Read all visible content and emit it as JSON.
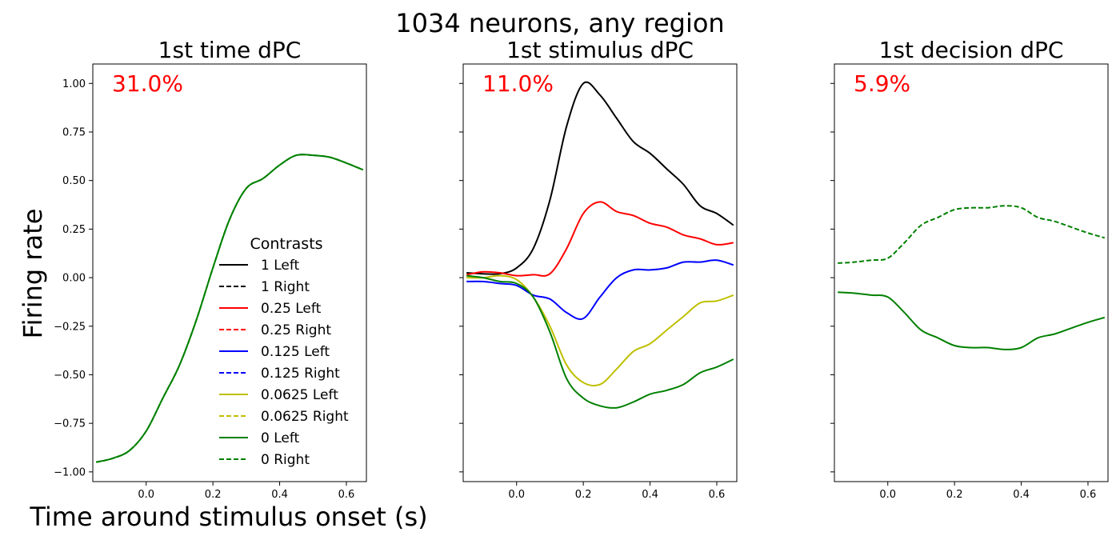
{
  "figure": {
    "suptitle": "1034 neurons, any region",
    "ylabel": "Firing rate",
    "xlabel": "Time around stimulus onset (s)",
    "annotation_color": "#ff0000"
  },
  "legend": {
    "title": "Contrasts",
    "entries": [
      {
        "label": "1 Left",
        "color": "#000000",
        "dashed": false
      },
      {
        "label": "1 Right",
        "color": "#000000",
        "dashed": true
      },
      {
        "label": "0.25 Left",
        "color": "#ff0000",
        "dashed": false
      },
      {
        "label": "0.25 Right",
        "color": "#ff0000",
        "dashed": true
      },
      {
        "label": "0.125 Left",
        "color": "#0000ff",
        "dashed": false
      },
      {
        "label": "0.125 Right",
        "color": "#0000ff",
        "dashed": true
      },
      {
        "label": "0.0625 Left",
        "color": "#bfbf00",
        "dashed": false
      },
      {
        "label": "0.0625 Right",
        "color": "#bfbf00",
        "dashed": true
      },
      {
        "label": "0 Left",
        "color": "#008000",
        "dashed": false
      },
      {
        "label": "0 Right",
        "color": "#008000",
        "dashed": true
      }
    ]
  },
  "chart_data": [
    {
      "type": "line",
      "title": "1st time dPC",
      "annotation": "31.0%",
      "xlim": [
        -0.16,
        0.66
      ],
      "ylim": [
        -1.05,
        1.1
      ],
      "xticks": [
        0.0,
        0.2,
        0.4,
        0.6
      ],
      "xtick_labels": [
        "0.0",
        "0.2",
        "0.4",
        "0.6"
      ],
      "yticks": [
        1.0,
        0.75,
        0.5,
        0.25,
        0.0,
        -0.25,
        -0.5,
        -0.75,
        -1.0
      ],
      "ytick_labels": [
        "1.00",
        "0.75",
        "0.50",
        "0.25",
        "0.00",
        "−0.25",
        "−0.50",
        "−0.75",
        "−1.00"
      ],
      "legend_position": "lower-right",
      "series": [
        {
          "name": "0 Left",
          "color": "#008000",
          "dashed": false,
          "x": [
            -0.15,
            -0.1,
            -0.05,
            0.0,
            0.05,
            0.1,
            0.15,
            0.2,
            0.25,
            0.3,
            0.35,
            0.4,
            0.45,
            0.5,
            0.55,
            0.6,
            0.65
          ],
          "y": [
            -0.95,
            -0.93,
            -0.89,
            -0.79,
            -0.62,
            -0.45,
            -0.22,
            0.05,
            0.3,
            0.46,
            0.51,
            0.58,
            0.63,
            0.63,
            0.62,
            0.59,
            0.555
          ]
        },
        {
          "name": "0 Right",
          "color": "#008000",
          "dashed": true,
          "x": [
            -0.15,
            -0.1,
            -0.05,
            0.0,
            0.05,
            0.1,
            0.15,
            0.2,
            0.25,
            0.3,
            0.35,
            0.4,
            0.45,
            0.5,
            0.55,
            0.6,
            0.65
          ],
          "y": [
            -0.95,
            -0.93,
            -0.89,
            -0.79,
            -0.62,
            -0.45,
            -0.22,
            0.05,
            0.3,
            0.46,
            0.51,
            0.58,
            0.63,
            0.63,
            0.62,
            0.59,
            0.555
          ]
        }
      ]
    },
    {
      "type": "line",
      "title": "1st stimulus dPC",
      "annotation": "11.0%",
      "xlim": [
        -0.16,
        0.66
      ],
      "ylim": [
        -1.05,
        1.1
      ],
      "xticks": [
        0.0,
        0.2,
        0.4,
        0.6
      ],
      "xtick_labels": [
        "0.0",
        "0.2",
        "0.4",
        "0.6"
      ],
      "yticks": [
        1.0,
        0.75,
        0.5,
        0.25,
        0.0,
        -0.25,
        -0.5,
        -0.75,
        -1.0
      ],
      "series": [
        {
          "name": "1 Left",
          "color": "#000000",
          "dashed": false,
          "x": [
            -0.15,
            -0.1,
            -0.05,
            0.0,
            0.05,
            0.1,
            0.15,
            0.2,
            0.25,
            0.3,
            0.35,
            0.4,
            0.45,
            0.5,
            0.55,
            0.6,
            0.65
          ],
          "y": [
            0.025,
            0.02,
            0.02,
            0.05,
            0.15,
            0.4,
            0.78,
            1.0,
            0.94,
            0.82,
            0.7,
            0.64,
            0.56,
            0.48,
            0.37,
            0.33,
            0.27
          ]
        },
        {
          "name": "0.25 Left",
          "color": "#ff0000",
          "dashed": false,
          "x": [
            -0.15,
            -0.1,
            -0.05,
            0.0,
            0.05,
            0.1,
            0.15,
            0.2,
            0.25,
            0.3,
            0.35,
            0.4,
            0.45,
            0.5,
            0.55,
            0.6,
            0.65
          ],
          "y": [
            0.015,
            0.03,
            0.025,
            0.01,
            0.015,
            0.02,
            0.15,
            0.33,
            0.39,
            0.34,
            0.32,
            0.28,
            0.26,
            0.22,
            0.2,
            0.17,
            0.18
          ]
        },
        {
          "name": "0.125 Left",
          "color": "#0000ff",
          "dashed": false,
          "x": [
            -0.15,
            -0.1,
            -0.05,
            0.0,
            0.05,
            0.1,
            0.15,
            0.2,
            0.25,
            0.3,
            0.35,
            0.4,
            0.45,
            0.5,
            0.55,
            0.6,
            0.65
          ],
          "y": [
            -0.02,
            -0.02,
            -0.03,
            -0.04,
            -0.09,
            -0.11,
            -0.18,
            -0.21,
            -0.1,
            0.0,
            0.04,
            0.04,
            0.05,
            0.08,
            0.08,
            0.09,
            0.065
          ]
        },
        {
          "name": "0.0625 Left",
          "color": "#bfbf00",
          "dashed": false,
          "x": [
            -0.15,
            -0.1,
            -0.05,
            0.0,
            0.05,
            0.1,
            0.15,
            0.2,
            0.25,
            0.3,
            0.35,
            0.4,
            0.45,
            0.5,
            0.55,
            0.6,
            0.65
          ],
          "y": [
            0.0,
            0.0,
            0.01,
            -0.01,
            -0.1,
            -0.25,
            -0.45,
            -0.54,
            -0.55,
            -0.47,
            -0.38,
            -0.34,
            -0.27,
            -0.2,
            -0.13,
            -0.12,
            -0.09
          ]
        },
        {
          "name": "0 Left",
          "color": "#008000",
          "dashed": false,
          "x": [
            -0.15,
            -0.1,
            -0.05,
            0.0,
            0.05,
            0.1,
            0.15,
            0.2,
            0.25,
            0.3,
            0.35,
            0.4,
            0.45,
            0.5,
            0.55,
            0.6,
            0.65
          ],
          "y": [
            0.01,
            0.0,
            -0.02,
            -0.03,
            -0.1,
            -0.28,
            -0.52,
            -0.62,
            -0.66,
            -0.67,
            -0.64,
            -0.6,
            -0.58,
            -0.55,
            -0.49,
            -0.46,
            -0.42
          ]
        }
      ]
    },
    {
      "type": "line",
      "title": "1st decision dPC",
      "annotation": "5.9%",
      "xlim": [
        -0.16,
        0.66
      ],
      "ylim": [
        -1.05,
        1.1
      ],
      "xticks": [
        0.0,
        0.2,
        0.4,
        0.6
      ],
      "xtick_labels": [
        "0.0",
        "0.2",
        "0.4",
        "0.6"
      ],
      "yticks": [
        1.0,
        0.75,
        0.5,
        0.25,
        0.0,
        -0.25,
        -0.5,
        -0.75,
        -1.0
      ],
      "series": [
        {
          "name": "0 Right",
          "color": "#008000",
          "dashed": true,
          "x": [
            -0.15,
            -0.1,
            -0.05,
            0.0,
            0.05,
            0.1,
            0.15,
            0.2,
            0.25,
            0.3,
            0.35,
            0.4,
            0.45,
            0.5,
            0.55,
            0.6,
            0.65
          ],
          "y": [
            0.075,
            0.08,
            0.09,
            0.1,
            0.18,
            0.27,
            0.31,
            0.35,
            0.36,
            0.36,
            0.37,
            0.36,
            0.31,
            0.29,
            0.26,
            0.23,
            0.205
          ]
        },
        {
          "name": "0 Left",
          "color": "#008000",
          "dashed": false,
          "x": [
            -0.15,
            -0.1,
            -0.05,
            0.0,
            0.05,
            0.1,
            0.15,
            0.2,
            0.25,
            0.3,
            0.35,
            0.4,
            0.45,
            0.5,
            0.55,
            0.6,
            0.65
          ],
          "y": [
            -0.075,
            -0.08,
            -0.09,
            -0.1,
            -0.18,
            -0.27,
            -0.31,
            -0.35,
            -0.36,
            -0.36,
            -0.37,
            -0.36,
            -0.31,
            -0.29,
            -0.26,
            -0.23,
            -0.205
          ]
        }
      ]
    }
  ]
}
